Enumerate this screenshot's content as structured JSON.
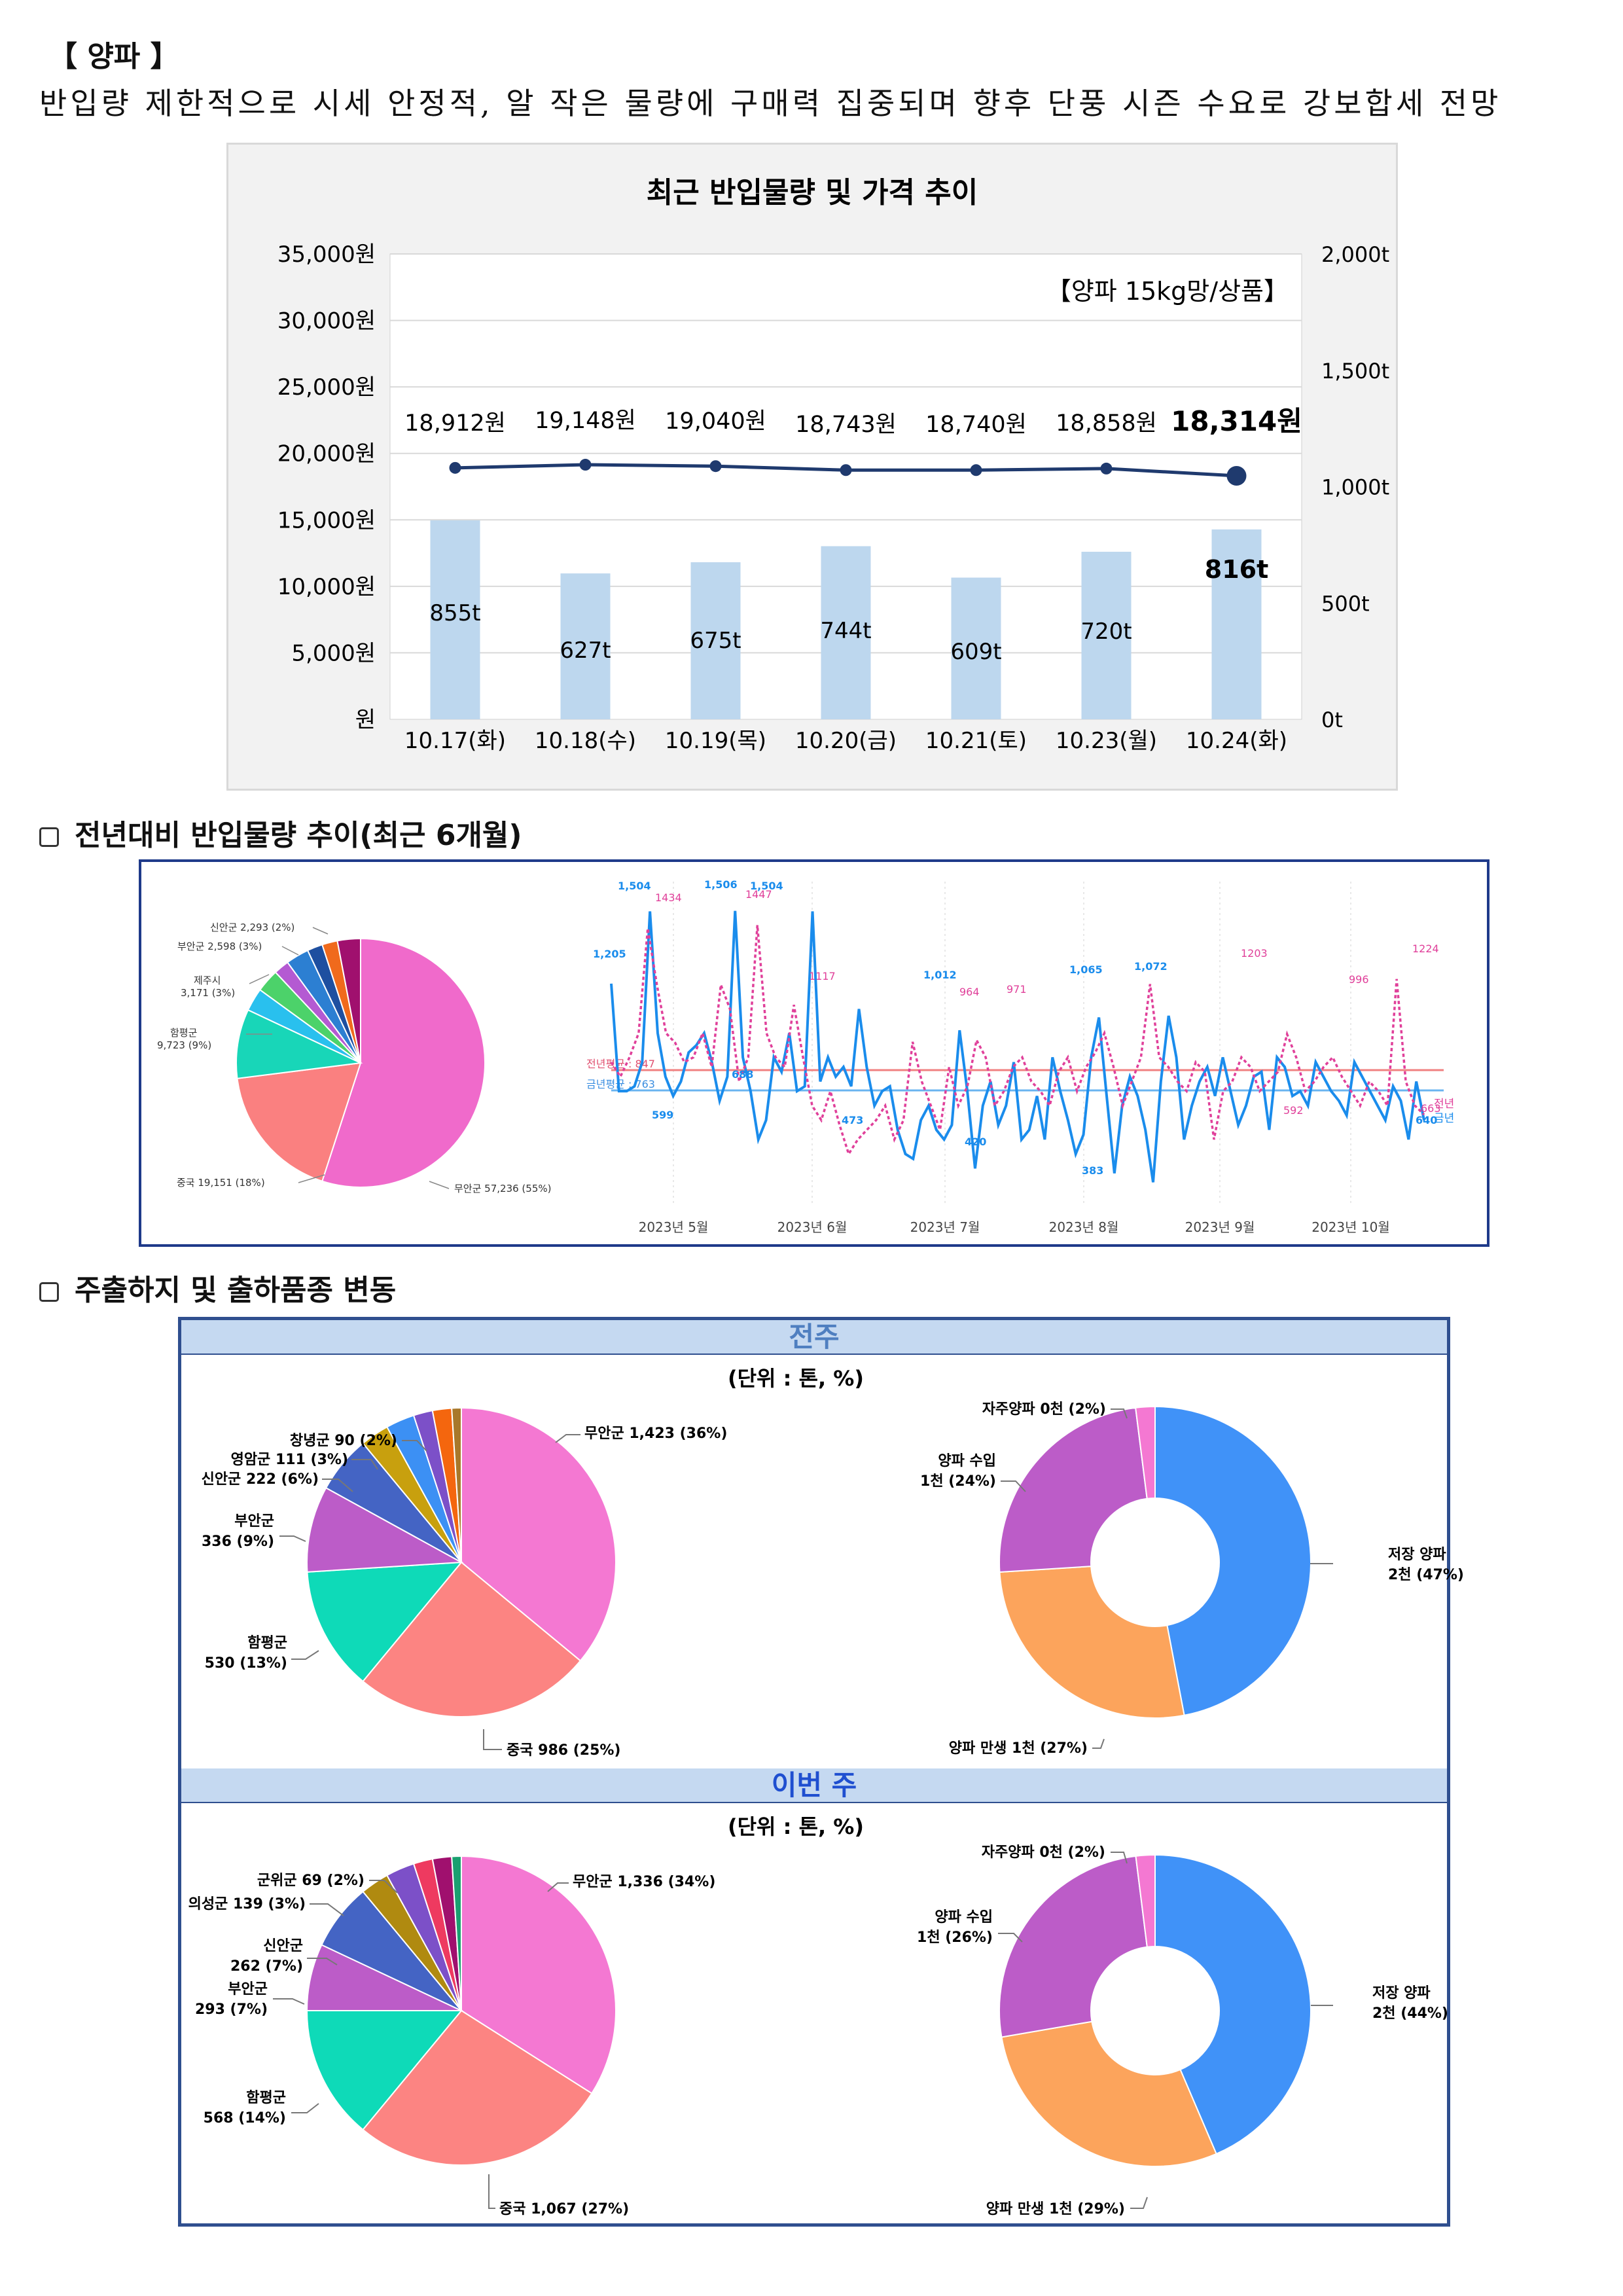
{
  "section": {
    "title": "【 양파 】",
    "summary": "반입량 제한적으로 시세 안정적, 알 작은 물량에 구매력 집중되며 향후 단풍 시즌 수요로 강보합세 전망"
  },
  "price_chart": {
    "title": "최근 반입물량 및 가격 추이",
    "note": "【양파 15kg망/상품】",
    "chart_data": {
      "type": "bar",
      "title": "최근 반입물량 및 가격 추이",
      "categories": [
        "10.17(화)",
        "10.18(수)",
        "10.19(목)",
        "10.20(금)",
        "10.21(토)",
        "10.23(월)",
        "10.24(화)"
      ],
      "series": [
        {
          "name": "반입물량",
          "axis": "right",
          "unit": "t",
          "values": [
            855,
            627,
            675,
            744,
            609,
            720,
            816
          ],
          "labels": [
            "855t",
            "627t",
            "675t",
            "744t",
            "609t",
            "720t",
            "816t"
          ]
        },
        {
          "name": "가격",
          "axis": "left",
          "unit": "원",
          "type": "line",
          "values": [
            18912,
            19148,
            19040,
            18743,
            18740,
            18858,
            18314
          ],
          "labels": [
            "18,912원",
            "19,148원",
            "19,040원",
            "18,743원",
            "18,740원",
            "18,858원",
            "18,314원"
          ]
        }
      ],
      "y_left": {
        "min": 0,
        "max": 35000,
        "ticks": [
          "원",
          "5,000원",
          "10,000원",
          "15,000원",
          "20,000원",
          "25,000원",
          "30,000원",
          "35,000원"
        ]
      },
      "y_right": {
        "min": 0,
        "max": 2000,
        "ticks": [
          "0t",
          "500t",
          "1,000t",
          "1,500t",
          "2,000t"
        ]
      },
      "colors": {
        "bar": "#bdd7ee",
        "line": "#1f3a6e"
      }
    }
  },
  "yoy": {
    "heading": "전년대비 반입물량 추이(최근 6개월)",
    "pie": {
      "chart_data": {
        "type": "pie",
        "slices": [
          {
            "label": "무안군 57,236 (55%)",
            "value": 55,
            "color": "#f06acb"
          },
          {
            "label": "중국 19,151 (18%)",
            "value": 18,
            "color": "#fa8080"
          },
          {
            "label": "함평군 9,723 (9%)",
            "value": 9,
            "color": "#18d6b8"
          },
          {
            "label": "제주시 3,171 (3%)",
            "value": 3,
            "color": "#29c0ee"
          },
          {
            "label": "부안군 2,598 (3%)",
            "value": 3,
            "color": "#4cd26a"
          },
          {
            "label": "신안군 2,293 (2%)",
            "value": 2,
            "color": "#b45ad2"
          },
          {
            "label": "",
            "value": 3,
            "color": "#2c7fd2"
          },
          {
            "label": "",
            "value": 2,
            "color": "#1e4fa0"
          },
          {
            "label": "",
            "value": 2,
            "color": "#f06a1c"
          },
          {
            "label": "",
            "value": 3,
            "color": "#a0106e"
          }
        ]
      }
    },
    "line": {
      "chart_data": {
        "type": "line",
        "x_labels": [
          "2023년 5월",
          "2023년 6월",
          "2023년 7월",
          "2023년 8월",
          "2023년 9월",
          "2023년 10월"
        ],
        "series": [
          {
            "name": "금년",
            "color": "#1a8cec",
            "values": [
              1205,
              760,
              760,
              780,
              880,
              1504,
              1000,
              820,
              740,
              800,
              920,
              950,
              1000,
              880,
              720,
              820,
              1506,
              900,
              760,
              560,
              640,
              900,
              840,
              1000,
              760,
              780,
              1504,
              800,
              900,
              820,
              860,
              780,
              1100,
              860,
              700,
              760,
              780,
              600,
              500,
              480,
              640,
              700,
              600,
              560,
              620,
              1012,
              760,
              440,
              700,
              800,
              620,
              700,
              880,
              560,
              600,
              740,
              560,
              900,
              760,
              640,
              500,
              580,
              900,
              1065,
              740,
              420,
              700,
              820,
              740,
              600,
              383,
              800,
              1072,
              900,
              560,
              700,
              800,
              860,
              740,
              900,
              760,
              620,
              700,
              820,
              840,
              600,
              900,
              860,
              740,
              760,
              700,
              880,
              820,
              760,
              720,
              660,
              880,
              820,
              760,
              700,
              640,
              780,
              720,
              560,
              800,
              640
            ]
          },
          {
            "name": "전년",
            "color": "#e0409a",
            "values": [
              880,
              820,
              900,
              1000,
              1434,
              1200,
              1000,
              960,
              880,
              900,
              1000,
              860,
              1200,
              1100,
              800,
              900,
              1447,
              1000,
              900,
              860,
              1117,
              900,
              700,
              640,
              760,
              620,
              500,
              560,
              600,
              640,
              700,
              560,
              640,
              964,
              800,
              700,
              600,
              860,
              700,
              780,
              971,
              900,
              700,
              760,
              860,
              900,
              800,
              760,
              700,
              840,
              900,
              760,
              860,
              920,
              1000,
              860,
              700,
              800,
              900,
              1203,
              900,
              860,
              800,
              760,
              880,
              840,
              560,
              760,
              800,
              900,
              860,
              760,
              800,
              840,
              996,
              900,
              760,
              800,
              860,
              900,
              820,
              760,
              700,
              800,
              760,
              700,
              1224,
              800,
              700,
              663
            ]
          }
        ],
        "point_labels": [
          "1,504",
          "1,506",
          "1,504",
          "1,205",
          "1434",
          "1447",
          "1117",
          "1,012",
          "964",
          "971",
          "1,065",
          "1,072",
          "1203",
          "996",
          "1224",
          "688",
          "599",
          "473",
          "420",
          "383",
          "592",
          "663",
          "640"
        ],
        "reference_labels": [
          "전년평균 : 847",
          "금년평균 : 763"
        ],
        "legend": [
          "전년",
          "금년"
        ]
      }
    }
  },
  "shipping": {
    "heading": "주출하지 및 출하품종 변동",
    "prev_week": {
      "title": "전주",
      "unit": "(단위 : 톤, %)",
      "origin_pie": {
        "chart_data": {
          "type": "pie",
          "slices": [
            {
              "label": "무안군 1,423 (36%)",
              "value": 36,
              "color": "#f478d2"
            },
            {
              "label": "중국 986 (25%)",
              "value": 25,
              "color": "#fc8482"
            },
            {
              "label": "함평군 530 (13%)",
              "value": 13,
              "color": "#0edab8"
            },
            {
              "label": "부안군 336 (9%)",
              "value": 9,
              "color": "#bc5cc8"
            },
            {
              "label": "신안군 222 (6%)",
              "value": 6,
              "color": "#4464c4"
            },
            {
              "label": "영암군 111 (3%)",
              "value": 3,
              "color": "#c8a00e"
            },
            {
              "label": "",
              "value": 3,
              "color": "#3c90f4"
            },
            {
              "label": "창녕군 90 (2%)",
              "value": 2,
              "color": "#7c50c8"
            },
            {
              "label": "",
              "value": 2,
              "color": "#f4660e"
            },
            {
              "label": "",
              "value": 1,
              "color": "#a8782a"
            }
          ]
        }
      },
      "variety_donut": {
        "chart_data": {
          "type": "pie",
          "slices": [
            {
              "label": "저장 양파 2천 (47%)",
              "value": 47,
              "color": "#4092f8"
            },
            {
              "label": "양파 만생 1천 (27%)",
              "value": 27,
              "color": "#fca45c"
            },
            {
              "label": "양파 수입 1천 (24%)",
              "value": 24,
              "color": "#bc5cc8"
            },
            {
              "label": "자주양파 0천 (2%)",
              "value": 2,
              "color": "#f478d2"
            }
          ]
        }
      }
    },
    "this_week": {
      "title": "이번 주",
      "unit": "(단위 : 톤, %)",
      "origin_pie": {
        "chart_data": {
          "type": "pie",
          "slices": [
            {
              "label": "무안군 1,336 (34%)",
              "value": 34,
              "color": "#f478d2"
            },
            {
              "label": "중국 1,067 (27%)",
              "value": 27,
              "color": "#fc8482"
            },
            {
              "label": "함평군 568 (14%)",
              "value": 14,
              "color": "#0edab8"
            },
            {
              "label": "부안군 293 (7%)",
              "value": 7,
              "color": "#bc5cc8"
            },
            {
              "label": "신안군 262 (7%)",
              "value": 7,
              "color": "#4464c4"
            },
            {
              "label": "의성군 139 (3%)",
              "value": 3,
              "color": "#b08a10"
            },
            {
              "label": "",
              "value": 3,
              "color": "#7c50c8"
            },
            {
              "label": "군위군 69 (2%)",
              "value": 2,
              "color": "#ee3a60"
            },
            {
              "label": "",
              "value": 2,
              "color": "#a0106e"
            },
            {
              "label": "",
              "value": 1,
              "color": "#1aa070"
            }
          ]
        }
      },
      "variety_donut": {
        "chart_data": {
          "type": "pie",
          "slices": [
            {
              "label": "저장 양파 2천 (44%)",
              "value": 44,
              "color": "#4092f8"
            },
            {
              "label": "양파 만생 1천 (29%)",
              "value": 29,
              "color": "#fca45c"
            },
            {
              "label": "양파 수입 1천 (26%)",
              "value": 26,
              "color": "#bc5cc8"
            },
            {
              "label": "자주양파 0천 (2%)",
              "value": 2,
              "color": "#f478d2"
            }
          ]
        }
      }
    }
  }
}
